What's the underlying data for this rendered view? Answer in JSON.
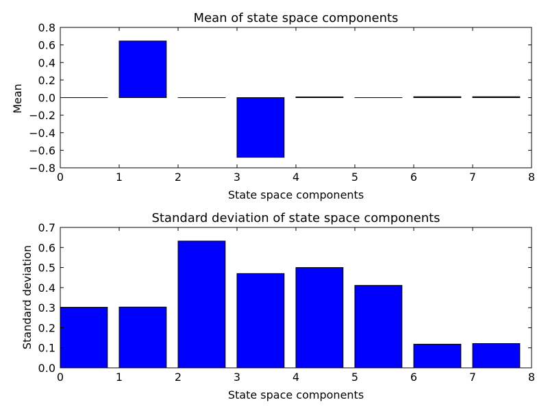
{
  "chart_data": [
    {
      "type": "bar",
      "title": "Mean of state space components",
      "xlabel": "State space components",
      "ylabel": "Mean",
      "xlim": [
        0,
        8
      ],
      "ylim": [
        -0.8,
        0.8
      ],
      "xticks": [
        "0",
        "1",
        "2",
        "3",
        "4",
        "5",
        "6",
        "7",
        "8"
      ],
      "yticks": [
        "−0.8",
        "−0.6",
        "−0.4",
        "−0.2",
        "0.0",
        "0.2",
        "0.4",
        "0.6",
        "0.8"
      ],
      "x": [
        0,
        1,
        2,
        3,
        4,
        5,
        6,
        7
      ],
      "values": [
        0.0,
        0.645,
        0.0,
        -0.68,
        0.008,
        0.0,
        0.01,
        0.01
      ],
      "bar_width": 0.8,
      "color": "#0000ff",
      "grid": false
    },
    {
      "type": "bar",
      "title": "Standard deviation of state space components",
      "xlabel": "State space components",
      "ylabel": "Standard deviation",
      "xlim": [
        0,
        8
      ],
      "ylim": [
        0.0,
        0.7
      ],
      "xticks": [
        "0",
        "1",
        "2",
        "3",
        "4",
        "5",
        "6",
        "7",
        "8"
      ],
      "yticks": [
        "0.0",
        "0.1",
        "0.2",
        "0.3",
        "0.4",
        "0.5",
        "0.6",
        "0.7"
      ],
      "x": [
        0,
        1,
        2,
        3,
        4,
        5,
        6,
        7
      ],
      "values": [
        0.302,
        0.303,
        0.632,
        0.47,
        0.5,
        0.411,
        0.118,
        0.121
      ],
      "bar_width": 0.8,
      "color": "#0000ff",
      "grid": false
    }
  ]
}
